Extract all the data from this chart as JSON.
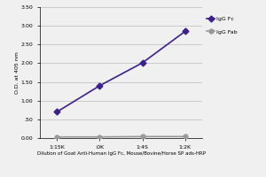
{
  "x_labels": [
    "1:15K",
    ":0K",
    "1:4S",
    "1:2K"
  ],
  "x_positions": [
    0,
    1,
    2,
    3
  ],
  "igG_Fc": [
    0.7,
    1.4,
    2.01,
    2.85
  ],
  "igG_Fab": [
    0.03,
    0.03,
    0.04,
    0.04
  ],
  "igG_Fc_color": "#3d1f8c",
  "igG_Fab_color": "#999999",
  "ylabel": "O.D. at 405 nm",
  "xlabel": "Dilution of Goat Anti-Human IgG Fc, Mouse/Bovine/Horse SP ads-HRP",
  "ylim": [
    0.0,
    3.5
  ],
  "yticks": [
    0.0,
    0.5,
    1.0,
    1.5,
    2.0,
    2.5,
    3.0,
    3.5
  ],
  "ytick_labels": [
    "0.00",
    ".50",
    "1.00",
    "1.50",
    "2.00",
    "2.50",
    "3.00",
    "3.50"
  ],
  "legend_labels": [
    "IgG Fc",
    "IgG Fab"
  ],
  "bg_color": "#f0f0f0",
  "plot_bg": "#f0f0f0",
  "grid_color": "#bbbbbb"
}
